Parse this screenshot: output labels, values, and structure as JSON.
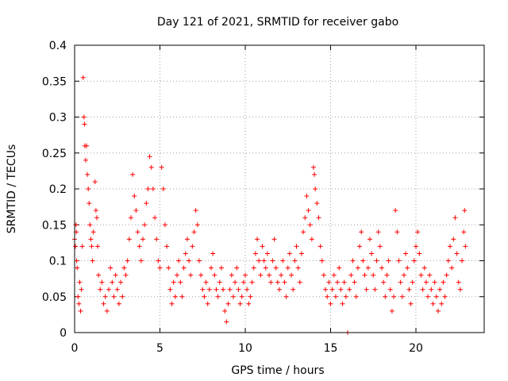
{
  "chart_data": {
    "type": "scatter",
    "title": "Day 121 of 2021, SRMTID for receiver gabo",
    "xlabel": "GPS time / hours",
    "ylabel": "SRMTID / TECUs",
    "xlim": [
      0,
      24
    ],
    "ylim": [
      0,
      0.4
    ],
    "xticks": [
      0,
      5,
      10,
      15,
      20
    ],
    "xtick_labels": [
      "0",
      "5",
      "10",
      "15",
      "20"
    ],
    "yticks": [
      0,
      0.05,
      0.1,
      0.15,
      0.2,
      0.25,
      0.3,
      0.35,
      0.4
    ],
    "ytick_labels": [
      "0",
      "0.05",
      "0.1",
      "0.15",
      "0.2",
      "0.25",
      "0.3",
      "0.35",
      "0.4"
    ],
    "grid": true,
    "marker": "+",
    "color": "#ff0000",
    "series": [
      {
        "name": "SRMTID",
        "points": [
          [
            0.0,
            0.13
          ],
          [
            0.05,
            0.12
          ],
          [
            0.08,
            0.15
          ],
          [
            0.1,
            0.14
          ],
          [
            0.12,
            0.1
          ],
          [
            0.15,
            0.09
          ],
          [
            0.2,
            0.05
          ],
          [
            0.25,
            0.04
          ],
          [
            0.3,
            0.07
          ],
          [
            0.35,
            0.03
          ],
          [
            0.4,
            0.06
          ],
          [
            0.45,
            0.12
          ],
          [
            0.5,
            0.355
          ],
          [
            0.55,
            0.3
          ],
          [
            0.58,
            0.29
          ],
          [
            0.6,
            0.26
          ],
          [
            0.65,
            0.24
          ],
          [
            0.7,
            0.26
          ],
          [
            0.75,
            0.22
          ],
          [
            0.8,
            0.2
          ],
          [
            0.85,
            0.18
          ],
          [
            0.9,
            0.15
          ],
          [
            0.95,
            0.13
          ],
          [
            1.0,
            0.12
          ],
          [
            1.05,
            0.1
          ],
          [
            1.1,
            0.14
          ],
          [
            1.2,
            0.21
          ],
          [
            1.25,
            0.17
          ],
          [
            1.3,
            0.16
          ],
          [
            1.35,
            0.12
          ],
          [
            1.4,
            0.08
          ],
          [
            1.5,
            0.06
          ],
          [
            1.6,
            0.07
          ],
          [
            1.7,
            0.04
          ],
          [
            1.8,
            0.05
          ],
          [
            1.9,
            0.03
          ],
          [
            2.0,
            0.06
          ],
          [
            2.1,
            0.09
          ],
          [
            2.2,
            0.07
          ],
          [
            2.3,
            0.05
          ],
          [
            2.4,
            0.08
          ],
          [
            2.5,
            0.06
          ],
          [
            2.6,
            0.04
          ],
          [
            2.7,
            0.07
          ],
          [
            2.8,
            0.05
          ],
          [
            2.9,
            0.09
          ],
          [
            3.0,
            0.08
          ],
          [
            3.1,
            0.1
          ],
          [
            3.2,
            0.13
          ],
          [
            3.3,
            0.16
          ],
          [
            3.4,
            0.22
          ],
          [
            3.5,
            0.19
          ],
          [
            3.6,
            0.17
          ],
          [
            3.7,
            0.14
          ],
          [
            3.8,
            0.12
          ],
          [
            3.9,
            0.1
          ],
          [
            4.0,
            0.13
          ],
          [
            4.1,
            0.15
          ],
          [
            4.2,
            0.18
          ],
          [
            4.3,
            0.2
          ],
          [
            4.4,
            0.245
          ],
          [
            4.5,
            0.23
          ],
          [
            4.6,
            0.2
          ],
          [
            4.7,
            0.16
          ],
          [
            4.8,
            0.13
          ],
          [
            4.9,
            0.1
          ],
          [
            5.0,
            0.09
          ],
          [
            5.1,
            0.23
          ],
          [
            5.2,
            0.2
          ],
          [
            5.3,
            0.15
          ],
          [
            5.4,
            0.12
          ],
          [
            5.5,
            0.09
          ],
          [
            5.6,
            0.06
          ],
          [
            5.7,
            0.04
          ],
          [
            5.8,
            0.07
          ],
          [
            5.9,
            0.05
          ],
          [
            6.0,
            0.08
          ],
          [
            6.1,
            0.1
          ],
          [
            6.2,
            0.07
          ],
          [
            6.3,
            0.05
          ],
          [
            6.4,
            0.09
          ],
          [
            6.5,
            0.11
          ],
          [
            6.6,
            0.13
          ],
          [
            6.7,
            0.1
          ],
          [
            6.8,
            0.08
          ],
          [
            6.9,
            0.12
          ],
          [
            7.0,
            0.14
          ],
          [
            7.1,
            0.17
          ],
          [
            7.2,
            0.15
          ],
          [
            7.3,
            0.1
          ],
          [
            7.4,
            0.08
          ],
          [
            7.5,
            0.06
          ],
          [
            7.6,
            0.05
          ],
          [
            7.7,
            0.07
          ],
          [
            7.8,
            0.04
          ],
          [
            7.9,
            0.06
          ],
          [
            8.0,
            0.09
          ],
          [
            8.1,
            0.11
          ],
          [
            8.2,
            0.08
          ],
          [
            8.3,
            0.06
          ],
          [
            8.4,
            0.05
          ],
          [
            8.5,
            0.07
          ],
          [
            8.6,
            0.09
          ],
          [
            8.7,
            0.06
          ],
          [
            8.8,
            0.03
          ],
          [
            8.9,
            0.015
          ],
          [
            9.0,
            0.04
          ],
          [
            9.1,
            0.06
          ],
          [
            9.2,
            0.08
          ],
          [
            9.3,
            0.05
          ],
          [
            9.4,
            0.07
          ],
          [
            9.5,
            0.09
          ],
          [
            9.6,
            0.06
          ],
          [
            9.7,
            0.04
          ],
          [
            9.8,
            0.05
          ],
          [
            9.9,
            0.07
          ],
          [
            10.0,
            0.08
          ],
          [
            10.1,
            0.06
          ],
          [
            10.2,
            0.04
          ],
          [
            10.3,
            0.05
          ],
          [
            10.4,
            0.07
          ],
          [
            10.5,
            0.09
          ],
          [
            10.6,
            0.11
          ],
          [
            10.7,
            0.13
          ],
          [
            10.8,
            0.1
          ],
          [
            10.9,
            0.08
          ],
          [
            11.0,
            0.12
          ],
          [
            11.1,
            0.1
          ],
          [
            11.2,
            0.09
          ],
          [
            11.3,
            0.11
          ],
          [
            11.4,
            0.08
          ],
          [
            11.5,
            0.07
          ],
          [
            11.6,
            0.1
          ],
          [
            11.7,
            0.13
          ],
          [
            11.8,
            0.09
          ],
          [
            11.9,
            0.07
          ],
          [
            12.0,
            0.06
          ],
          [
            12.1,
            0.08
          ],
          [
            12.2,
            0.1
          ],
          [
            12.3,
            0.07
          ],
          [
            12.4,
            0.05
          ],
          [
            12.5,
            0.09
          ],
          [
            12.6,
            0.11
          ],
          [
            12.7,
            0.08
          ],
          [
            12.8,
            0.06
          ],
          [
            12.9,
            0.1
          ],
          [
            13.0,
            0.12
          ],
          [
            13.1,
            0.09
          ],
          [
            13.2,
            0.07
          ],
          [
            13.3,
            0.11
          ],
          [
            13.4,
            0.14
          ],
          [
            13.5,
            0.16
          ],
          [
            13.6,
            0.19
          ],
          [
            13.7,
            0.17
          ],
          [
            13.8,
            0.15
          ],
          [
            13.9,
            0.13
          ],
          [
            14.0,
            0.23
          ],
          [
            14.05,
            0.22
          ],
          [
            14.1,
            0.2
          ],
          [
            14.2,
            0.18
          ],
          [
            14.3,
            0.16
          ],
          [
            14.4,
            0.12
          ],
          [
            14.5,
            0.1
          ],
          [
            14.6,
            0.08
          ],
          [
            14.7,
            0.06
          ],
          [
            14.8,
            0.05
          ],
          [
            14.9,
            0.07
          ],
          [
            15.0,
            0.04
          ],
          [
            15.1,
            0.06
          ],
          [
            15.2,
            0.08
          ],
          [
            15.3,
            0.05
          ],
          [
            15.4,
            0.07
          ],
          [
            15.5,
            0.09
          ],
          [
            15.6,
            0.06
          ],
          [
            15.7,
            0.04
          ],
          [
            15.8,
            0.07
          ],
          [
            15.9,
            0.05
          ],
          [
            16.0,
            0.0
          ],
          [
            16.1,
            0.06
          ],
          [
            16.2,
            0.08
          ],
          [
            16.3,
            0.1
          ],
          [
            16.4,
            0.07
          ],
          [
            16.5,
            0.05
          ],
          [
            16.6,
            0.09
          ],
          [
            16.7,
            0.12
          ],
          [
            16.8,
            0.14
          ],
          [
            16.9,
            0.1
          ],
          [
            17.0,
            0.08
          ],
          [
            17.1,
            0.06
          ],
          [
            17.2,
            0.09
          ],
          [
            17.3,
            0.13
          ],
          [
            17.4,
            0.11
          ],
          [
            17.5,
            0.08
          ],
          [
            17.6,
            0.06
          ],
          [
            17.7,
            0.1
          ],
          [
            17.8,
            0.14
          ],
          [
            17.9,
            0.12
          ],
          [
            18.0,
            0.09
          ],
          [
            18.1,
            0.07
          ],
          [
            18.2,
            0.05
          ],
          [
            18.3,
            0.08
          ],
          [
            18.4,
            0.1
          ],
          [
            18.5,
            0.06
          ],
          [
            18.6,
            0.03
          ],
          [
            18.7,
            0.05
          ],
          [
            18.8,
            0.17
          ],
          [
            18.9,
            0.14
          ],
          [
            19.0,
            0.1
          ],
          [
            19.1,
            0.07
          ],
          [
            19.2,
            0.05
          ],
          [
            19.3,
            0.08
          ],
          [
            19.4,
            0.11
          ],
          [
            19.5,
            0.09
          ],
          [
            19.6,
            0.06
          ],
          [
            19.7,
            0.04
          ],
          [
            19.8,
            0.07
          ],
          [
            19.9,
            0.1
          ],
          [
            20.0,
            0.12
          ],
          [
            20.1,
            0.14
          ],
          [
            20.2,
            0.11
          ],
          [
            20.3,
            0.08
          ],
          [
            20.4,
            0.06
          ],
          [
            20.5,
            0.09
          ],
          [
            20.6,
            0.07
          ],
          [
            20.7,
            0.05
          ],
          [
            20.8,
            0.08
          ],
          [
            20.9,
            0.06
          ],
          [
            21.0,
            0.04
          ],
          [
            21.1,
            0.07
          ],
          [
            21.2,
            0.05
          ],
          [
            21.3,
            0.03
          ],
          [
            21.4,
            0.06
          ],
          [
            21.5,
            0.04
          ],
          [
            21.6,
            0.07
          ],
          [
            21.7,
            0.05
          ],
          [
            21.8,
            0.08
          ],
          [
            21.9,
            0.1
          ],
          [
            22.0,
            0.12
          ],
          [
            22.1,
            0.09
          ],
          [
            22.2,
            0.13
          ],
          [
            22.3,
            0.16
          ],
          [
            22.4,
            0.11
          ],
          [
            22.5,
            0.07
          ],
          [
            22.6,
            0.06
          ],
          [
            22.7,
            0.1
          ],
          [
            22.8,
            0.14
          ],
          [
            22.85,
            0.17
          ],
          [
            22.9,
            0.12
          ]
        ]
      }
    ]
  }
}
